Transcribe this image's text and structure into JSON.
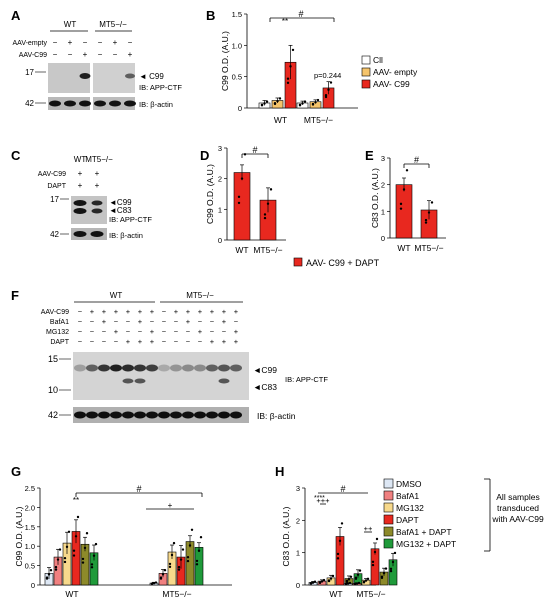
{
  "panels": {
    "A": {
      "letter": "A",
      "groups": [
        "WT",
        "MT5−/−"
      ],
      "row_labels": [
        "AAV-empty",
        "AAV-C99"
      ],
      "signs": [
        [
          "−",
          "+",
          "−",
          "−",
          "+",
          "−"
        ],
        [
          "−",
          "−",
          "+",
          "−",
          "−",
          "+"
        ]
      ],
      "mw": [
        "17",
        "42"
      ],
      "band_labels": [
        "C99",
        "IB: APP-CTF",
        "IB: β-actin"
      ]
    },
    "C": {
      "letter": "C",
      "groups": [
        "WT",
        "MT5−/−"
      ],
      "row_labels": [
        "AAV-C99",
        "DAPT"
      ],
      "signs": [
        [
          "+",
          "+"
        ],
        [
          "+",
          "+"
        ]
      ],
      "mw": [
        "17",
        "42"
      ],
      "band_labels": [
        "C99",
        "C83",
        "IB: APP-CTF",
        "IB: β-actin"
      ]
    },
    "F": {
      "letter": "F",
      "groups": [
        "WT",
        "MT5−/−"
      ],
      "row_labels": [
        "AAV-C99",
        "BafA1",
        "MG132",
        "DAPT"
      ],
      "signs": [
        [
          "−",
          "+",
          "+",
          "+",
          "+",
          "+",
          "+",
          "−",
          "+",
          "+",
          "+",
          "+",
          "+",
          "+"
        ],
        [
          "−",
          "−",
          "+",
          "−",
          "−",
          "+",
          "−",
          "−",
          "−",
          "+",
          "−",
          "−",
          "+",
          "−"
        ],
        [
          "−",
          "−",
          "−",
          "+",
          "−",
          "−",
          "+",
          "−",
          "−",
          "−",
          "+",
          "−",
          "−",
          "+"
        ],
        [
          "−",
          "−",
          "−",
          "−",
          "+",
          "+",
          "+",
          "−",
          "−",
          "−",
          "−",
          "+",
          "+",
          "+"
        ]
      ],
      "mw": [
        "15",
        "10",
        "42"
      ],
      "band_labels": [
        "C99",
        "C83",
        "IB: APP-CTF",
        "IB: β-actin"
      ]
    }
  },
  "colors": {
    "cll": "#ffffff",
    "empty": "#f5c46b",
    "c99": "#e8281f",
    "dmso": "#dde7f4",
    "bafa1": "#f08080",
    "mg132": "#f7d98c",
    "dapt": "#e8281f",
    "bafa1_dapt": "#8d8a2a",
    "mg132_dapt": "#1f9a3a"
  },
  "chart_data": [
    {
      "panel": "B",
      "type": "bar",
      "ylabel": "C99 O.D. (A.U.)",
      "ylim": [
        0,
        1.5
      ],
      "yticks": [
        "0",
        "0.5",
        "1.0",
        "1.5"
      ],
      "groups": [
        "WT",
        "MT5−/−"
      ],
      "series": [
        {
          "name": "Cll",
          "values": [
            0.08,
            0.08
          ],
          "errors": [
            0.04,
            0.03
          ]
        },
        {
          "name": "AAV- empty",
          "values": [
            0.12,
            0.1
          ],
          "errors": [
            0.04,
            0.03
          ]
        },
        {
          "name": "AAV- C99",
          "values": [
            0.73,
            0.32
          ],
          "errors": [
            0.27,
            0.1
          ]
        }
      ],
      "annotations": {
        "sig": "#",
        "stars": "**",
        "pvalue": "p=0.244"
      },
      "legend": "right"
    },
    {
      "panel": "D",
      "type": "bar",
      "ylabel": "C99 O.D. (A.U.)",
      "ylim": [
        0,
        3
      ],
      "yticks": [
        "0",
        "1",
        "2",
        "3"
      ],
      "categories": [
        "WT",
        "MT5−/−"
      ],
      "values": [
        2.2,
        1.3
      ],
      "errors": [
        0.25,
        0.4
      ],
      "annotations": {
        "sig": "#"
      }
    },
    {
      "panel": "E",
      "type": "bar",
      "ylabel": "C83 O.D. (A.U.)",
      "ylim": [
        0,
        3
      ],
      "yticks": [
        "0",
        "1",
        "2",
        "3"
      ],
      "categories": [
        "WT",
        "MT5−/−"
      ],
      "values": [
        2.0,
        1.05
      ],
      "errors": [
        0.25,
        0.35
      ],
      "annotations": {
        "sig": "#"
      },
      "legend_label": "AAV- C99 + DAPT"
    },
    {
      "panel": "G",
      "type": "bar",
      "ylabel": "C99 O.D. (A.U.)",
      "ylim": [
        0,
        2.5
      ],
      "yticks": [
        "0",
        "0.5",
        "1.0",
        "1.5",
        "2.0",
        "2.5"
      ],
      "groups": [
        "WT",
        "MT5−/−"
      ],
      "series": [
        {
          "name": "DMSO",
          "values": [
            0.3,
            0.05
          ],
          "errors": [
            0.15,
            0.02
          ]
        },
        {
          "name": "BafA1",
          "values": [
            0.72,
            0.3
          ],
          "errors": [
            0.2,
            0.1
          ]
        },
        {
          "name": "MG132",
          "values": [
            1.08,
            0.85
          ],
          "errors": [
            0.28,
            0.18
          ]
        },
        {
          "name": "DAPT",
          "values": [
            1.38,
            0.72
          ],
          "errors": [
            0.3,
            0.3
          ]
        },
        {
          "name": "BafA1 + DAPT",
          "values": [
            1.05,
            1.12
          ],
          "errors": [
            0.18,
            0.15
          ]
        },
        {
          "name": "MG132 + DAPT",
          "values": [
            0.83,
            0.97
          ],
          "errors": [
            0.2,
            0.12
          ]
        }
      ],
      "annotations": {
        "sig": "#",
        "stars": "**",
        "plus": "+"
      }
    },
    {
      "panel": "H",
      "type": "bar",
      "ylabel": "C83 O.D. (A.U.)",
      "ylim": [
        0,
        3
      ],
      "yticks": [
        "0",
        "1",
        "2",
        "3"
      ],
      "groups": [
        "WT",
        "MT5−/−"
      ],
      "series": [
        {
          "name": "DMSO",
          "values": [
            0.08,
            0.05
          ],
          "errors": [
            0.03,
            0.02
          ]
        },
        {
          "name": "BafA1",
          "values": [
            0.12,
            0.05
          ],
          "errors": [
            0.04,
            0.02
          ]
        },
        {
          "name": "MG132",
          "values": [
            0.22,
            0.15
          ],
          "errors": [
            0.08,
            0.05
          ]
        },
        {
          "name": "DAPT",
          "values": [
            1.5,
            1.12
          ],
          "errors": [
            0.28,
            0.18
          ]
        },
        {
          "name": "BafA1 + DAPT",
          "values": [
            0.2,
            0.4
          ],
          "errors": [
            0.08,
            0.12
          ]
        },
        {
          "name": "MG132 + DAPT",
          "values": [
            0.35,
            0.78
          ],
          "errors": [
            0.12,
            0.2
          ]
        }
      ],
      "annotations": {
        "sig": "#",
        "plus_wt": "+++",
        "plus_mt": "++",
        "stars": "****"
      },
      "legend": "right",
      "legend_note": [
        "All samples",
        "transduced",
        "with AAV-C99"
      ]
    }
  ]
}
